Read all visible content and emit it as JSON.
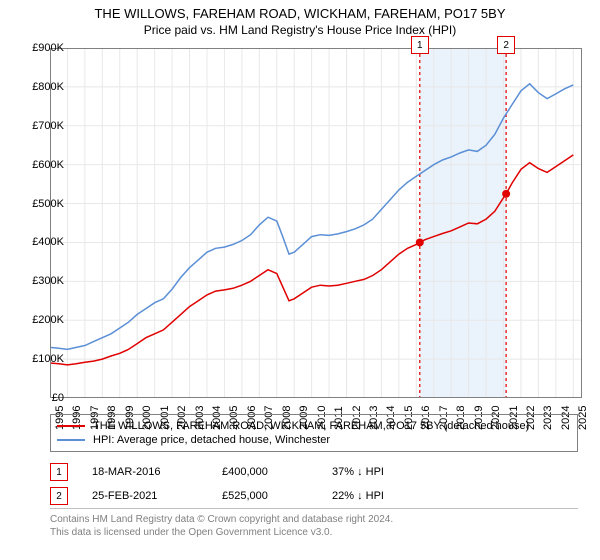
{
  "title_line1": "THE WILLOWS, FAREHAM ROAD, WICKHAM, FAREHAM, PO17 5BY",
  "title_line2": "Price paid vs. HM Land Registry's House Price Index (HPI)",
  "chart": {
    "type": "line",
    "background_color": "#ffffff",
    "grid_color": "#e8e8e8",
    "border_color": "#808080",
    "highlight_band": {
      "x_start": 2016.2,
      "x_end": 2021.15,
      "fill": "#eaf2fb"
    },
    "xlim": [
      1995,
      2025.5
    ],
    "ylim": [
      0,
      900000
    ],
    "ytick_step": 100000,
    "yticks": [
      "£0",
      "£100K",
      "£200K",
      "£300K",
      "£400K",
      "£500K",
      "£600K",
      "£700K",
      "£800K",
      "£900K"
    ],
    "xticks": [
      1995,
      1996,
      1997,
      1998,
      1999,
      2000,
      2001,
      2002,
      2003,
      2004,
      2005,
      2006,
      2007,
      2008,
      2009,
      2010,
      2011,
      2012,
      2013,
      2014,
      2015,
      2016,
      2017,
      2018,
      2019,
      2020,
      2021,
      2022,
      2023,
      2024,
      2025
    ],
    "axis_fontsize": 11,
    "series": [
      {
        "name": "property",
        "label": "THE WILLOWS, FAREHAM ROAD, WICKHAM, FAREHAM, PO17 5BY (detached house)",
        "color": "#e00000",
        "line_width": 1.5,
        "data": [
          [
            1995,
            90000
          ],
          [
            1995.5,
            88000
          ],
          [
            1996,
            85000
          ],
          [
            1996.5,
            88000
          ],
          [
            1997,
            92000
          ],
          [
            1997.5,
            95000
          ],
          [
            1998,
            100000
          ],
          [
            1998.5,
            108000
          ],
          [
            1999,
            115000
          ],
          [
            1999.5,
            125000
          ],
          [
            2000,
            140000
          ],
          [
            2000.5,
            155000
          ],
          [
            2001,
            165000
          ],
          [
            2001.5,
            175000
          ],
          [
            2002,
            195000
          ],
          [
            2002.5,
            215000
          ],
          [
            2003,
            235000
          ],
          [
            2003.5,
            250000
          ],
          [
            2004,
            265000
          ],
          [
            2004.5,
            275000
          ],
          [
            2005,
            278000
          ],
          [
            2005.5,
            282000
          ],
          [
            2006,
            290000
          ],
          [
            2006.5,
            300000
          ],
          [
            2007,
            315000
          ],
          [
            2007.5,
            330000
          ],
          [
            2008,
            320000
          ],
          [
            2008.3,
            290000
          ],
          [
            2008.7,
            250000
          ],
          [
            2009,
            255000
          ],
          [
            2009.5,
            270000
          ],
          [
            2010,
            285000
          ],
          [
            2010.5,
            290000
          ],
          [
            2011,
            288000
          ],
          [
            2011.5,
            290000
          ],
          [
            2012,
            295000
          ],
          [
            2012.5,
            300000
          ],
          [
            2013,
            305000
          ],
          [
            2013.5,
            315000
          ],
          [
            2014,
            330000
          ],
          [
            2014.5,
            350000
          ],
          [
            2015,
            370000
          ],
          [
            2015.5,
            385000
          ],
          [
            2016,
            395000
          ],
          [
            2016.2,
            400000
          ],
          [
            2016.5,
            407000
          ],
          [
            2017,
            415000
          ],
          [
            2017.5,
            423000
          ],
          [
            2018,
            430000
          ],
          [
            2018.5,
            440000
          ],
          [
            2019,
            450000
          ],
          [
            2019.5,
            448000
          ],
          [
            2020,
            460000
          ],
          [
            2020.5,
            480000
          ],
          [
            2021,
            515000
          ],
          [
            2021.15,
            525000
          ],
          [
            2021.5,
            553000
          ],
          [
            2022,
            588000
          ],
          [
            2022.5,
            605000
          ],
          [
            2023,
            590000
          ],
          [
            2023.5,
            580000
          ],
          [
            2024,
            595000
          ],
          [
            2024.5,
            610000
          ],
          [
            2025,
            625000
          ]
        ]
      },
      {
        "name": "hpi",
        "label": "HPI: Average price, detached house, Winchester",
        "color": "#5b8fd6",
        "line_width": 1.5,
        "data": [
          [
            1995,
            130000
          ],
          [
            1995.5,
            128000
          ],
          [
            1996,
            125000
          ],
          [
            1996.5,
            130000
          ],
          [
            1997,
            135000
          ],
          [
            1997.5,
            145000
          ],
          [
            1998,
            155000
          ],
          [
            1998.5,
            165000
          ],
          [
            1999,
            180000
          ],
          [
            1999.5,
            195000
          ],
          [
            2000,
            215000
          ],
          [
            2000.5,
            230000
          ],
          [
            2001,
            245000
          ],
          [
            2001.5,
            255000
          ],
          [
            2002,
            280000
          ],
          [
            2002.5,
            310000
          ],
          [
            2003,
            335000
          ],
          [
            2003.5,
            355000
          ],
          [
            2004,
            375000
          ],
          [
            2004.5,
            385000
          ],
          [
            2005,
            388000
          ],
          [
            2005.5,
            395000
          ],
          [
            2006,
            405000
          ],
          [
            2006.5,
            420000
          ],
          [
            2007,
            445000
          ],
          [
            2007.5,
            465000
          ],
          [
            2008,
            455000
          ],
          [
            2008.3,
            420000
          ],
          [
            2008.7,
            370000
          ],
          [
            2009,
            375000
          ],
          [
            2009.5,
            395000
          ],
          [
            2010,
            415000
          ],
          [
            2010.5,
            420000
          ],
          [
            2011,
            418000
          ],
          [
            2011.5,
            422000
          ],
          [
            2012,
            428000
          ],
          [
            2012.5,
            435000
          ],
          [
            2013,
            445000
          ],
          [
            2013.5,
            460000
          ],
          [
            2014,
            485000
          ],
          [
            2014.5,
            510000
          ],
          [
            2015,
            535000
          ],
          [
            2015.5,
            555000
          ],
          [
            2016,
            570000
          ],
          [
            2016.5,
            585000
          ],
          [
            2017,
            600000
          ],
          [
            2017.5,
            612000
          ],
          [
            2018,
            620000
          ],
          [
            2018.5,
            630000
          ],
          [
            2019,
            638000
          ],
          [
            2019.5,
            634000
          ],
          [
            2020,
            650000
          ],
          [
            2020.5,
            678000
          ],
          [
            2021,
            720000
          ],
          [
            2021.5,
            755000
          ],
          [
            2022,
            790000
          ],
          [
            2022.5,
            808000
          ],
          [
            2023,
            785000
          ],
          [
            2023.5,
            770000
          ],
          [
            2024,
            782000
          ],
          [
            2024.5,
            795000
          ],
          [
            2025,
            805000
          ]
        ]
      }
    ],
    "markers": [
      {
        "n": "1",
        "x": 2016.2,
        "y": 400000,
        "badge_y_offset": -362
      },
      {
        "n": "2",
        "x": 2021.15,
        "y": 525000,
        "badge_y_offset": -362
      }
    ]
  },
  "legend": {
    "items": [
      {
        "color": "#e00000",
        "text": "THE WILLOWS, FAREHAM ROAD, WICKHAM, FAREHAM, PO17 5BY (detached house)"
      },
      {
        "color": "#5b8fd6",
        "text": "HPI: Average price, detached house, Winchester"
      }
    ]
  },
  "marker_table": [
    {
      "n": "1",
      "date": "18-MAR-2016",
      "price": "£400,000",
      "pct": "37% ↓ HPI"
    },
    {
      "n": "2",
      "date": "25-FEB-2021",
      "price": "£525,000",
      "pct": "22% ↓ HPI"
    }
  ],
  "footer_line1": "Contains HM Land Registry data © Crown copyright and database right 2024.",
  "footer_line2": "This data is licensed under the Open Government Licence v3.0."
}
